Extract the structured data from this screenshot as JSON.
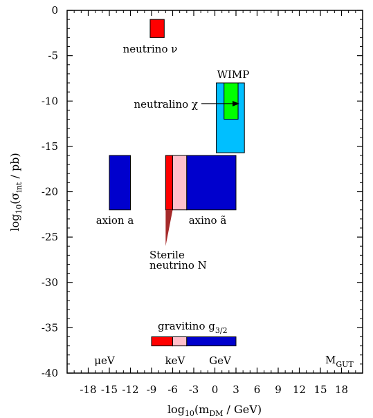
{
  "chart_data": {
    "type": "region-plot",
    "xlabel": "log10(mDM / GeV)",
    "ylabel": "log10(σint / pb)",
    "xlim": [
      -21,
      21
    ],
    "ylim": [
      -40,
      0
    ],
    "x_ticks": [
      -18,
      -15,
      -12,
      -9,
      -6,
      -3,
      0,
      3,
      6,
      9,
      12,
      15,
      18
    ],
    "y_ticks": [
      0,
      -5,
      -10,
      -15,
      -20,
      -25,
      -30,
      -35,
      -40
    ],
    "grid": false,
    "regions": [
      {
        "name": "neutrino ν",
        "x": [
          -9.2,
          -7.2
        ],
        "y": [
          -3,
          -1
        ],
        "color": "#ff0000"
      },
      {
        "name": "WIMP",
        "x": [
          0.2,
          4.2
        ],
        "y": [
          -15.7,
          -8
        ],
        "color": "#00bfff"
      },
      {
        "name": "neutralino χ",
        "x": [
          1.3,
          3.3
        ],
        "y": [
          -12,
          -8
        ],
        "color": "#00ff00"
      },
      {
        "name": "axion a",
        "x": [
          -15,
          -12
        ],
        "y": [
          -22,
          -16
        ],
        "color": "#0000cd"
      },
      {
        "name": "axino ã (hot)",
        "x": [
          -7,
          -6
        ],
        "y": [
          -22,
          -16
        ],
        "color": "#ff0000"
      },
      {
        "name": "axino ã (warm)",
        "x": [
          -6,
          -4
        ],
        "y": [
          -22,
          -16
        ],
        "color": "#ffc0cb"
      },
      {
        "name": "axino ã (cold)",
        "x": [
          -4,
          3
        ],
        "y": [
          -22,
          -16
        ],
        "color": "#0000cd"
      },
      {
        "name": "gravitino g3/2 (hot)",
        "x": [
          -9,
          -6
        ],
        "y": [
          -37,
          -36
        ],
        "color": "#ff0000"
      },
      {
        "name": "gravitino g3/2 (warm)",
        "x": [
          -6,
          -4
        ],
        "y": [
          -37,
          -36
        ],
        "color": "#ffc0cb"
      },
      {
        "name": "gravitino g3/2 (cold)",
        "x": [
          -4,
          3
        ],
        "y": [
          -37,
          -36
        ],
        "color": "#0000cd"
      }
    ],
    "sterile_neutrino": {
      "name": "Sterile neutrino N",
      "color": "#a52a2a"
    },
    "labels": {
      "neutrino": "neutrino ν",
      "wimp": "WIMP",
      "neutralino": "neutralino χ",
      "axion": "axion a",
      "axino": "axino ã",
      "sterile_line1": "Sterile",
      "sterile_line2": "neutrino N",
      "gravitino": "gravitino g",
      "gravitino_sub": "3/2",
      "mu_ev": "μeV",
      "kev": "keV",
      "gev": "GeV",
      "mgut": "M",
      "mgut_sub": "GUT"
    },
    "axis_titles": {
      "x_prefix": "log",
      "x_sub1": "10",
      "x_mid": "(m",
      "x_sub2": "DM",
      "x_suffix": " / GeV)",
      "y_prefix": "log",
      "y_sub1": "10",
      "y_mid": "(σ",
      "y_sub2": "int",
      "y_suffix": " / pb)"
    }
  }
}
